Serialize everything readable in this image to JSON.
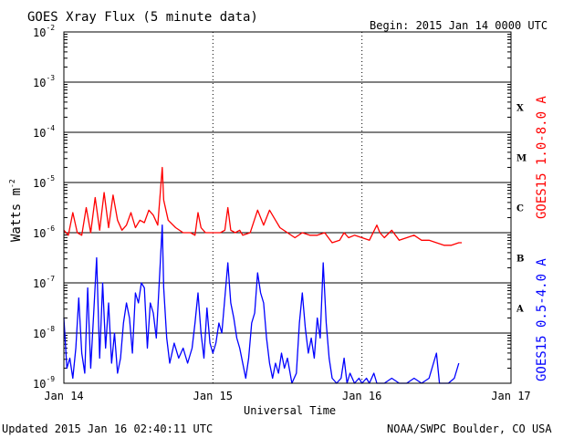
{
  "chart_data": {
    "type": "line",
    "title": "GOES Xray Flux (5 minute data)",
    "begin_label": "Begin:  2015 Jan 14 0000 UTC",
    "xlabel": "Universal Time",
    "ylabel_base": "Watts m",
    "ylabel_exp": "-2",
    "x_ticks": [
      "Jan 14",
      "Jan 15",
      "Jan 16",
      "Jan 17"
    ],
    "y_ticks": [
      {
        "base": "10",
        "exp": "-9"
      },
      {
        "base": "10",
        "exp": "-8"
      },
      {
        "base": "10",
        "exp": "-7"
      },
      {
        "base": "10",
        "exp": "-6"
      },
      {
        "base": "10",
        "exp": "-5"
      },
      {
        "base": "10",
        "exp": "-4"
      },
      {
        "base": "10",
        "exp": "-3"
      },
      {
        "base": "10",
        "exp": "-2"
      }
    ],
    "y_scale": "log",
    "ylim": [
      1e-09,
      0.01
    ],
    "xlim_days": [
      0,
      3
    ],
    "grid": true,
    "flare_classes": [
      "A",
      "B",
      "C",
      "M",
      "X"
    ],
    "series": [
      {
        "name": "GOES15 1.0-8.0 A",
        "color": "#ff0000",
        "points": [
          [
            0.0,
            -5.95
          ],
          [
            0.03,
            -6.05
          ],
          [
            0.06,
            -5.6
          ],
          [
            0.09,
            -6.0
          ],
          [
            0.12,
            -6.05
          ],
          [
            0.15,
            -5.5
          ],
          [
            0.18,
            -6.0
          ],
          [
            0.21,
            -5.3
          ],
          [
            0.24,
            -5.95
          ],
          [
            0.27,
            -5.2
          ],
          [
            0.3,
            -5.9
          ],
          [
            0.33,
            -5.25
          ],
          [
            0.36,
            -5.75
          ],
          [
            0.39,
            -5.95
          ],
          [
            0.42,
            -5.85
          ],
          [
            0.45,
            -5.6
          ],
          [
            0.48,
            -5.9
          ],
          [
            0.51,
            -5.75
          ],
          [
            0.54,
            -5.8
          ],
          [
            0.57,
            -5.55
          ],
          [
            0.6,
            -5.65
          ],
          [
            0.63,
            -5.85
          ],
          [
            0.66,
            -4.7
          ],
          [
            0.67,
            -5.35
          ],
          [
            0.7,
            -5.75
          ],
          [
            0.75,
            -5.9
          ],
          [
            0.8,
            -6.0
          ],
          [
            0.85,
            -6.0
          ],
          [
            0.88,
            -6.05
          ],
          [
            0.9,
            -5.6
          ],
          [
            0.92,
            -5.9
          ],
          [
            0.95,
            -6.0
          ],
          [
            1.0,
            -6.0
          ],
          [
            1.05,
            -6.0
          ],
          [
            1.08,
            -5.95
          ],
          [
            1.1,
            -5.5
          ],
          [
            1.12,
            -5.95
          ],
          [
            1.15,
            -6.0
          ],
          [
            1.18,
            -5.95
          ],
          [
            1.2,
            -6.05
          ],
          [
            1.25,
            -6.0
          ],
          [
            1.3,
            -5.55
          ],
          [
            1.34,
            -5.85
          ],
          [
            1.38,
            -5.55
          ],
          [
            1.42,
            -5.75
          ],
          [
            1.45,
            -5.9
          ],
          [
            1.5,
            -6.0
          ],
          [
            1.55,
            -6.1
          ],
          [
            1.6,
            -6.0
          ],
          [
            1.65,
            -6.05
          ],
          [
            1.7,
            -6.05
          ],
          [
            1.75,
            -6.0
          ],
          [
            1.8,
            -6.2
          ],
          [
            1.85,
            -6.15
          ],
          [
            1.88,
            -6.0
          ],
          [
            1.91,
            -6.1
          ],
          [
            1.95,
            -6.05
          ],
          [
            2.0,
            -6.1
          ],
          [
            2.05,
            -6.15
          ],
          [
            2.1,
            -5.85
          ],
          [
            2.12,
            -6.0
          ],
          [
            2.15,
            -6.1
          ],
          [
            2.2,
            -5.95
          ],
          [
            2.25,
            -6.15
          ],
          [
            2.3,
            -6.1
          ],
          [
            2.35,
            -6.05
          ],
          [
            2.4,
            -6.15
          ],
          [
            2.45,
            -6.15
          ],
          [
            2.5,
            -6.2
          ],
          [
            2.55,
            -6.25
          ],
          [
            2.6,
            -6.25
          ],
          [
            2.65,
            -6.2
          ],
          [
            2.67,
            -6.2
          ]
        ]
      },
      {
        "name": "GOES15 0.5-4.0 A",
        "color": "#0000ff",
        "points": [
          [
            0.0,
            -7.7
          ],
          [
            0.02,
            -8.7
          ],
          [
            0.04,
            -8.5
          ],
          [
            0.06,
            -8.9
          ],
          [
            0.08,
            -8.3
          ],
          [
            0.1,
            -7.3
          ],
          [
            0.12,
            -8.4
          ],
          [
            0.14,
            -8.8
          ],
          [
            0.16,
            -7.1
          ],
          [
            0.18,
            -8.7
          ],
          [
            0.2,
            -7.6
          ],
          [
            0.22,
            -6.5
          ],
          [
            0.24,
            -8.5
          ],
          [
            0.26,
            -7.0
          ],
          [
            0.28,
            -8.3
          ],
          [
            0.3,
            -7.4
          ],
          [
            0.32,
            -8.6
          ],
          [
            0.34,
            -8.0
          ],
          [
            0.36,
            -8.8
          ],
          [
            0.38,
            -8.5
          ],
          [
            0.4,
            -7.8
          ],
          [
            0.42,
            -7.4
          ],
          [
            0.44,
            -7.7
          ],
          [
            0.46,
            -8.4
          ],
          [
            0.48,
            -7.2
          ],
          [
            0.5,
            -7.4
          ],
          [
            0.52,
            -7.0
          ],
          [
            0.54,
            -7.1
          ],
          [
            0.56,
            -8.3
          ],
          [
            0.58,
            -7.4
          ],
          [
            0.6,
            -7.6
          ],
          [
            0.62,
            -8.1
          ],
          [
            0.64,
            -7.0
          ],
          [
            0.66,
            -5.85
          ],
          [
            0.67,
            -7.1
          ],
          [
            0.69,
            -8.1
          ],
          [
            0.71,
            -8.6
          ],
          [
            0.74,
            -8.2
          ],
          [
            0.77,
            -8.5
          ],
          [
            0.8,
            -8.3
          ],
          [
            0.83,
            -8.6
          ],
          [
            0.86,
            -8.3
          ],
          [
            0.88,
            -7.8
          ],
          [
            0.9,
            -7.2
          ],
          [
            0.92,
            -8.0
          ],
          [
            0.94,
            -8.5
          ],
          [
            0.96,
            -7.5
          ],
          [
            0.98,
            -8.2
          ],
          [
            1.0,
            -8.4
          ],
          [
            1.02,
            -8.2
          ],
          [
            1.04,
            -7.8
          ],
          [
            1.06,
            -8.0
          ],
          [
            1.08,
            -7.3
          ],
          [
            1.1,
            -6.6
          ],
          [
            1.12,
            -7.4
          ],
          [
            1.14,
            -7.7
          ],
          [
            1.16,
            -8.1
          ],
          [
            1.18,
            -8.3
          ],
          [
            1.2,
            -8.6
          ],
          [
            1.22,
            -8.9
          ],
          [
            1.24,
            -8.5
          ],
          [
            1.26,
            -7.8
          ],
          [
            1.28,
            -7.6
          ],
          [
            1.3,
            -6.8
          ],
          [
            1.32,
            -7.2
          ],
          [
            1.34,
            -7.4
          ],
          [
            1.36,
            -8.1
          ],
          [
            1.38,
            -8.6
          ],
          [
            1.4,
            -8.9
          ],
          [
            1.42,
            -8.6
          ],
          [
            1.44,
            -8.8
          ],
          [
            1.46,
            -8.4
          ],
          [
            1.48,
            -8.7
          ],
          [
            1.5,
            -8.5
          ],
          [
            1.53,
            -9.0
          ],
          [
            1.56,
            -8.8
          ],
          [
            1.58,
            -7.8
          ],
          [
            1.6,
            -7.2
          ],
          [
            1.62,
            -7.9
          ],
          [
            1.64,
            -8.4
          ],
          [
            1.66,
            -8.1
          ],
          [
            1.68,
            -8.5
          ],
          [
            1.7,
            -7.7
          ],
          [
            1.72,
            -8.1
          ],
          [
            1.74,
            -6.6
          ],
          [
            1.76,
            -7.8
          ],
          [
            1.78,
            -8.5
          ],
          [
            1.8,
            -8.9
          ],
          [
            1.83,
            -9.0
          ],
          [
            1.86,
            -8.9
          ],
          [
            1.88,
            -8.5
          ],
          [
            1.9,
            -9.0
          ],
          [
            1.92,
            -8.8
          ],
          [
            1.95,
            -9.0
          ],
          [
            1.98,
            -8.9
          ],
          [
            2.0,
            -9.0
          ],
          [
            2.03,
            -8.9
          ],
          [
            2.05,
            -9.0
          ],
          [
            2.08,
            -8.8
          ],
          [
            2.1,
            -9.0
          ],
          [
            2.15,
            -9.0
          ],
          [
            2.2,
            -8.9
          ],
          [
            2.25,
            -9.0
          ],
          [
            2.3,
            -9.0
          ],
          [
            2.35,
            -8.9
          ],
          [
            2.4,
            -9.0
          ],
          [
            2.45,
            -8.9
          ],
          [
            2.5,
            -8.4
          ],
          [
            2.52,
            -9.0
          ],
          [
            2.58,
            -9.0
          ],
          [
            2.62,
            -8.9
          ],
          [
            2.65,
            -8.6
          ]
        ]
      }
    ]
  },
  "footer": {
    "updated": "Updated 2015 Jan 16 02:40:11 UTC",
    "credit": "NOAA/SWPC Boulder, CO USA"
  }
}
